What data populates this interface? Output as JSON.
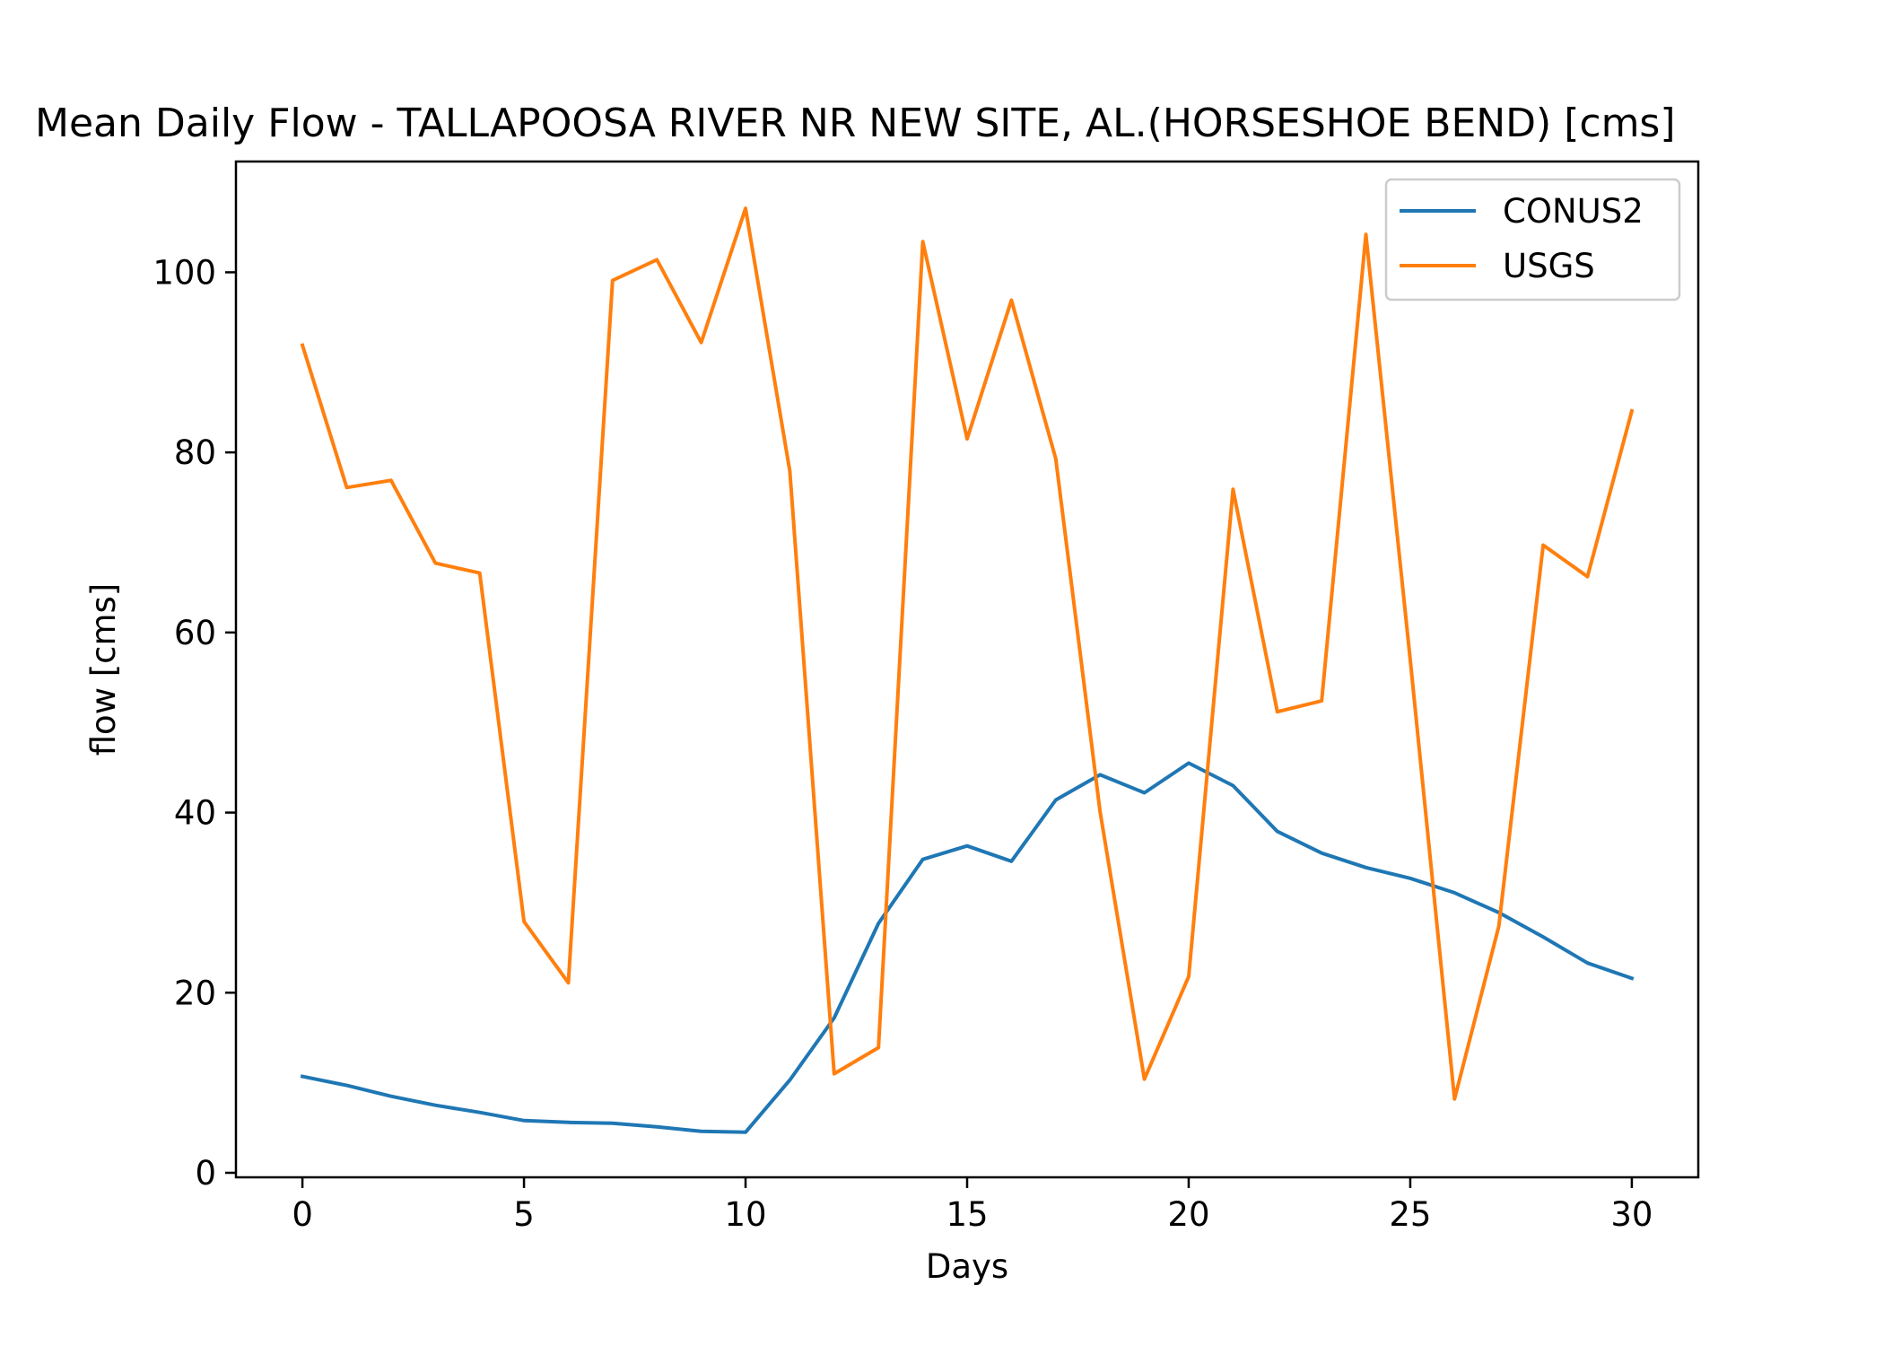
{
  "chart_data": {
    "type": "line",
    "title": "Mean Daily Flow - TALLAPOOSA RIVER NR NEW SITE, AL.(HORSESHOE BEND) [cms]",
    "xlabel": "Days",
    "ylabel": "flow [cms]",
    "xlim": [
      -1.5,
      31.5
    ],
    "ylim": [
      -0.5,
      112.3
    ],
    "xticks": [
      0,
      5,
      10,
      15,
      20,
      25,
      30
    ],
    "yticks": [
      0,
      20,
      40,
      60,
      80,
      100
    ],
    "grid": false,
    "legend_position": "top-right",
    "x": [
      0,
      1,
      2,
      3,
      4,
      5,
      6,
      7,
      8,
      9,
      10,
      11,
      12,
      13,
      14,
      15,
      16,
      17,
      18,
      19,
      20,
      21,
      22,
      23,
      24,
      25,
      26,
      27,
      28,
      29,
      30
    ],
    "series": [
      {
        "name": "CONUS2",
        "color": "#1f77b4",
        "values": [
          10.7,
          9.7,
          8.5,
          7.5,
          6.7,
          5.8,
          5.6,
          5.5,
          5.1,
          4.6,
          4.5,
          10.3,
          17.2,
          27.7,
          34.8,
          36.3,
          34.6,
          41.4,
          44.2,
          42.2,
          45.5,
          43.0,
          37.9,
          35.5,
          33.9,
          32.7,
          31.1,
          28.9,
          26.2,
          23.3,
          21.6
        ]
      },
      {
        "name": "USGS",
        "color": "#ff7f0e",
        "values": [
          91.9,
          76.1,
          76.9,
          67.7,
          66.6,
          27.9,
          21.1,
          99.1,
          101.4,
          92.2,
          107.1,
          77.9,
          11.0,
          13.9,
          103.4,
          81.5,
          96.9,
          79.3,
          40.1,
          10.4,
          21.8,
          75.9,
          51.2,
          52.4,
          104.2,
          57.0,
          8.2,
          27.4,
          69.7,
          66.2,
          84.6
        ]
      }
    ]
  }
}
